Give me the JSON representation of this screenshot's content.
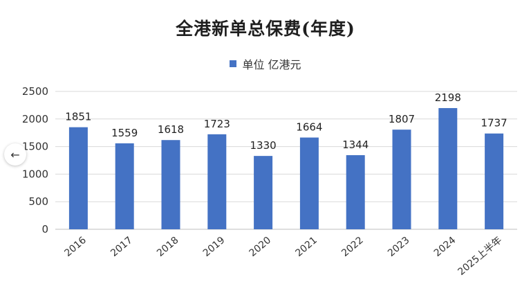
{
  "chart_data": {
    "type": "bar",
    "title": "全港新单总保费(年度)",
    "categories": [
      "2016",
      "2017",
      "2018",
      "2019",
      "2020",
      "2021",
      "2022",
      "2023",
      "2024",
      "2025上半年"
    ],
    "series": [
      {
        "name": "单位 亿港元",
        "values": [
          1851,
          1559,
          1618,
          1723,
          1330,
          1664,
          1344,
          1807,
          2198,
          1737
        ]
      }
    ],
    "ylim": [
      0,
      2500
    ],
    "yticks": [
      0,
      500,
      1000,
      1500,
      2000,
      2500
    ],
    "grid": true,
    "legend_position": "top-center",
    "bar_color": "#4472C4"
  },
  "nav": {
    "back_icon": "left-arrow-icon",
    "back_glyph": "←"
  }
}
